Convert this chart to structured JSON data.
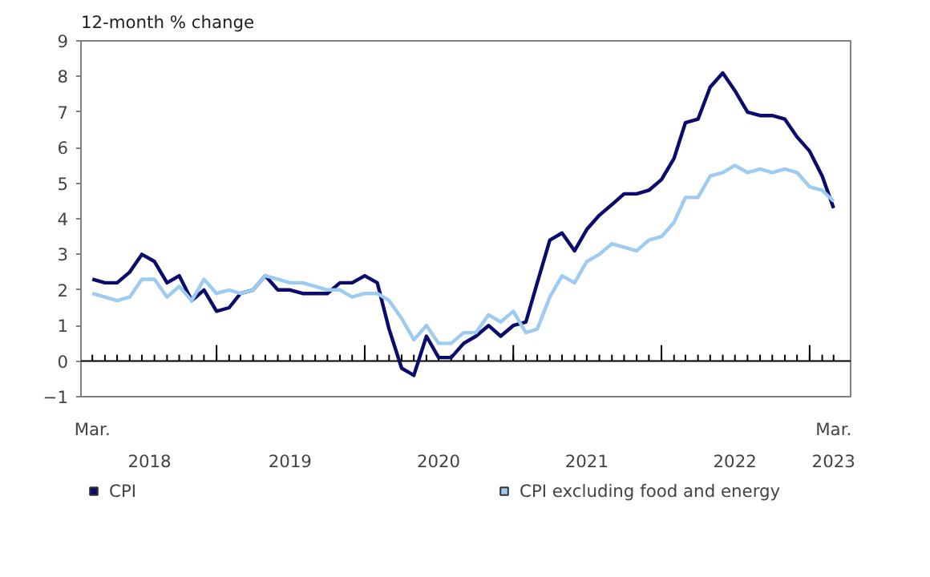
{
  "chart_data": {
    "type": "line",
    "ylabel": "12-month % change",
    "x": [
      "2018-03",
      "2018-04",
      "2018-05",
      "2018-06",
      "2018-07",
      "2018-08",
      "2018-09",
      "2018-10",
      "2018-11",
      "2018-12",
      "2019-01",
      "2019-02",
      "2019-03",
      "2019-04",
      "2019-05",
      "2019-06",
      "2019-07",
      "2019-08",
      "2019-09",
      "2019-10",
      "2019-11",
      "2019-12",
      "2020-01",
      "2020-02",
      "2020-03",
      "2020-04",
      "2020-05",
      "2020-06",
      "2020-07",
      "2020-08",
      "2020-09",
      "2020-10",
      "2020-11",
      "2020-12",
      "2021-01",
      "2021-02",
      "2021-03",
      "2021-04",
      "2021-05",
      "2021-06",
      "2021-07",
      "2021-08",
      "2021-09",
      "2021-10",
      "2021-11",
      "2021-12",
      "2022-01",
      "2022-02",
      "2022-03",
      "2022-04",
      "2022-05",
      "2022-06",
      "2022-07",
      "2022-08",
      "2022-09",
      "2022-10",
      "2022-11",
      "2022-12",
      "2023-01",
      "2023-02",
      "2023-03"
    ],
    "series": [
      {
        "name": "CPI",
        "color": "#0b0b6b",
        "values": [
          2.3,
          2.2,
          2.2,
          2.5,
          3.0,
          2.8,
          2.2,
          2.4,
          1.7,
          2.0,
          1.4,
          1.5,
          1.9,
          2.0,
          2.4,
          2.0,
          2.0,
          1.9,
          1.9,
          1.9,
          2.2,
          2.2,
          2.4,
          2.2,
          0.9,
          -0.2,
          -0.4,
          0.7,
          0.1,
          0.1,
          0.5,
          0.7,
          1.0,
          0.7,
          1.0,
          1.1,
          2.2,
          3.4,
          3.6,
          3.1,
          3.7,
          4.1,
          4.4,
          4.7,
          4.7,
          4.8,
          5.1,
          5.7,
          6.7,
          6.8,
          7.7,
          8.1,
          7.6,
          7.0,
          6.9,
          6.9,
          6.8,
          6.3,
          5.9,
          5.2,
          4.3
        ]
      },
      {
        "name": "CPI excluding food and energy",
        "color": "#9dcbf2",
        "values": [
          1.9,
          1.8,
          1.7,
          1.8,
          2.3,
          2.3,
          1.8,
          2.1,
          1.7,
          2.3,
          1.9,
          2.0,
          1.9,
          2.0,
          2.4,
          2.3,
          2.2,
          2.2,
          2.1,
          2.0,
          2.0,
          1.8,
          1.9,
          1.9,
          1.7,
          1.2,
          0.6,
          1.0,
          0.5,
          0.5,
          0.8,
          0.8,
          1.3,
          1.1,
          1.4,
          0.8,
          0.9,
          1.8,
          2.4,
          2.2,
          2.8,
          3.0,
          3.3,
          3.2,
          3.1,
          3.4,
          3.5,
          3.9,
          4.6,
          4.6,
          5.2,
          5.3,
          5.5,
          5.3,
          5.4,
          5.3,
          5.4,
          5.3,
          4.9,
          4.8,
          4.5
        ]
      }
    ],
    "xlim": [
      "2018-02-01",
      "2023-04-12"
    ],
    "xticks": [
      {
        "value": "2018-07-20",
        "label": "2018"
      },
      {
        "value": "2019-07-01",
        "label": "2019"
      },
      {
        "value": "2020-07-01",
        "label": "2020"
      },
      {
        "value": "2021-07-01",
        "label": "2021"
      },
      {
        "value": "2022-07-01",
        "label": "2022"
      },
      {
        "value": "2023-03-01",
        "label": "2023"
      }
    ],
    "annotations": [
      "Mar.",
      "Mar."
    ],
    "ref_lines": [
      {
        "axis": "y",
        "value": 0,
        "color": "#000000"
      }
    ],
    "ylim": [
      -1,
      9
    ],
    "yticks": [
      -1,
      0,
      1,
      2,
      3,
      4,
      5,
      6,
      7,
      8,
      9
    ],
    "grid": false,
    "legend": "bottom",
    "marker": "none",
    "line_style": "solid"
  }
}
